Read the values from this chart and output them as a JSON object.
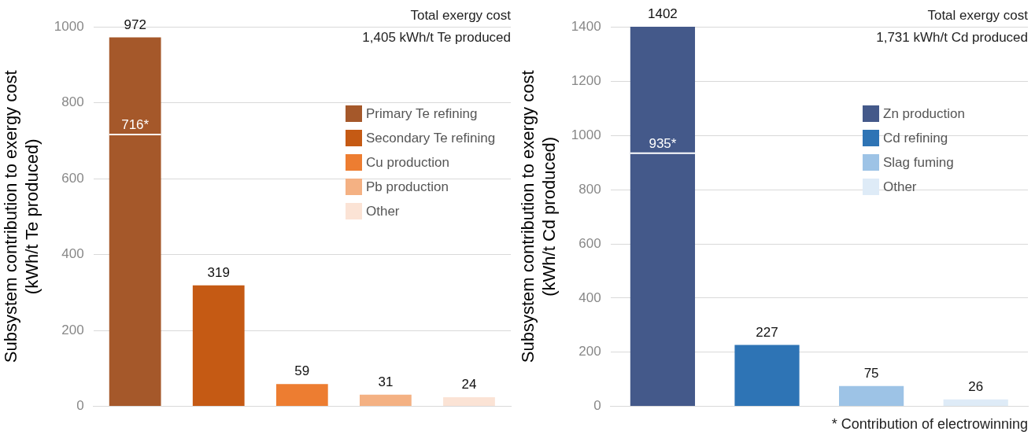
{
  "chart_data": [
    {
      "type": "bar",
      "title": "Total exergy cost",
      "subtitle": "1,405 kWh/t Te produced",
      "ylabel": "Subsystem contribution to exergy cost\n(kWh/t Te produced)",
      "categories": [
        null,
        null,
        null,
        null,
        null
      ],
      "series": [
        {
          "name": "Primary Te refining",
          "color": "#a5582a",
          "values": [
            972,
            null,
            null,
            null,
            null
          ]
        },
        {
          "name": "Secondary Te refining",
          "color": "#c55a14",
          "values": [
            null,
            319,
            null,
            null,
            null
          ]
        },
        {
          "name": "Cu production",
          "color": "#ed7d31",
          "values": [
            null,
            null,
            59,
            null,
            null
          ]
        },
        {
          "name": "Pb production",
          "color": "#f4b183",
          "values": [
            null,
            null,
            null,
            31,
            null
          ]
        },
        {
          "name": "Other",
          "color": "#fbe3d5",
          "values": [
            null,
            null,
            null,
            null,
            24
          ]
        }
      ],
      "ylim": [
        0,
        1000
      ],
      "yticks": [
        0,
        200,
        400,
        600,
        800,
        1000
      ],
      "grid": "y",
      "legend": "right",
      "data_labels": true,
      "ref_lines": [
        {
          "axis": "y",
          "value": 716,
          "label": "716*",
          "color": "#ffffff"
        }
      ]
    },
    {
      "type": "bar",
      "title": "Total exergy cost",
      "subtitle": "1,731 kWh/t Cd produced",
      "ylabel": "Subsystem contribution to exergy cost\n(kWh/t Cd produced)",
      "categories": [
        null,
        null,
        null,
        null
      ],
      "series": [
        {
          "name": "Zn production",
          "color": "#44598a",
          "values": [
            1402,
            null,
            null,
            null
          ]
        },
        {
          "name": "Cd refining",
          "color": "#2e74b5",
          "values": [
            null,
            227,
            null,
            null
          ]
        },
        {
          "name": "Slag fuming",
          "color": "#9dc3e6",
          "values": [
            null,
            null,
            75,
            null
          ]
        },
        {
          "name": "Other",
          "color": "#deebf7",
          "values": [
            null,
            null,
            null,
            26
          ]
        }
      ],
      "ylim": [
        0,
        1402
      ],
      "yticks": [
        0,
        200,
        400,
        600,
        800,
        1000,
        1200,
        1400
      ],
      "grid": "y",
      "legend": "right",
      "data_labels": true,
      "ref_lines": [
        {
          "axis": "y",
          "value": 935,
          "label": "935*",
          "color": "#ffffff"
        }
      ],
      "annotations": [
        "* Contribution of electrowinning"
      ]
    }
  ]
}
